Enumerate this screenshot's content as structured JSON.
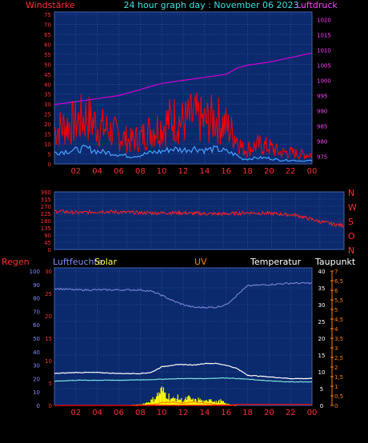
{
  "header": {
    "left": "Windstärke",
    "center": "24 hour graph day : November 06 2023",
    "right": "Luftdruck"
  },
  "colors": {
    "panel_bg": "#0b2a6e",
    "grid": "#3e5fb0",
    "wind_gust": "#ff0000",
    "wind_avg": "#2a6fdc",
    "wind_avg2": "#4aa0ff",
    "pressure": "#d000d0",
    "direction": "#ff2020",
    "humidity": "#6f7fd0",
    "temperature": "#ffffff",
    "dewpoint": "#7fe0e0",
    "solar": "#ffff00",
    "uv": "#ff8000",
    "rain": "#ff0000",
    "left_axis_text": "#ff3030",
    "right_pressure_text": "#ff40ff",
    "x_axis_text": "#ff3030"
  },
  "x_ticks": [
    "02",
    "04",
    "06",
    "08",
    "10",
    "12",
    "14",
    "16",
    "18",
    "20",
    "22",
    "00"
  ],
  "panel_wind": {
    "left_ticks": [
      "75",
      "70",
      "65",
      "60",
      "55",
      "50",
      "45",
      "40",
      "35",
      "30",
      "25",
      "20",
      "15",
      "10",
      "5",
      "0"
    ],
    "right_ticks": [
      "1020",
      "1015",
      "1010",
      "1005",
      "1000",
      "995",
      "990",
      "985",
      "980",
      "975"
    ]
  },
  "panel_dir": {
    "left_ticks": [
      "360",
      "315",
      "270",
      "225",
      "180",
      "135",
      "90",
      "45",
      "0"
    ],
    "right_labels": [
      "N",
      "W",
      "S",
      "O",
      "N"
    ]
  },
  "panel_env": {
    "headers": {
      "regen": "Regen",
      "luftfeuchte": "Luftfeuchte",
      "solar": "Solar",
      "uv": "UV",
      "temperatur": "Temperatur",
      "taupunkt": "Taupunkt"
    },
    "hum_ticks": [
      "100",
      "90",
      "80",
      "70",
      "60",
      "50",
      "40",
      "30",
      "20",
      "10",
      "0"
    ],
    "rain_ticks": [
      "30",
      "25",
      "20",
      "15",
      "10",
      "5",
      "0"
    ],
    "temp_ticks": [
      "40",
      "35",
      "30",
      "25",
      "20",
      "15",
      "10",
      "5",
      "0"
    ],
    "uv_ticks": [
      "7",
      "6,5",
      "6",
      "5,5",
      "5",
      "4,5",
      "4",
      "3,5",
      "3",
      "2,5",
      "2",
      "1,5",
      "1",
      "0,5",
      "0"
    ]
  },
  "chart_data": [
    {
      "type": "line",
      "title": "24 hour graph day : November 06 2023",
      "ylabel": "Windstärke",
      "y2label": "Luftdruck",
      "x_range_hours": [
        0,
        24
      ],
      "ylim": [
        0,
        75
      ],
      "y2lim": [
        972.5,
        1022.5
      ],
      "series": [
        {
          "name": "Windstärke",
          "axis": "left",
          "x": [
            0,
            1,
            2,
            3,
            4,
            5,
            6,
            7,
            8,
            9,
            10,
            11,
            12,
            13,
            14,
            15,
            16,
            17,
            17.5,
            18,
            19,
            20,
            21,
            22,
            23,
            24
          ],
          "values": [
            18,
            20,
            22,
            25,
            20,
            18,
            15,
            12,
            14,
            18,
            20,
            24,
            22,
            25,
            22,
            24,
            20,
            14,
            8,
            8,
            10,
            9,
            6,
            6,
            5,
            5
          ]
        },
        {
          "name": "Luftdruck",
          "axis": "right",
          "x": [
            0,
            2,
            4,
            6,
            8,
            10,
            12,
            14,
            16,
            17,
            18,
            20,
            22,
            24
          ],
          "values": [
            992,
            993,
            994,
            995,
            997,
            999,
            1000,
            1001,
            1002,
            1004,
            1005,
            1006,
            1007.5,
            1009
          ]
        }
      ]
    },
    {
      "type": "line",
      "x_range_hours": [
        0,
        24
      ],
      "ylim": [
        0,
        360
      ],
      "series": [
        {
          "name": "Windrichtung",
          "x": [
            0,
            2,
            4,
            6,
            8,
            10,
            12,
            14,
            16,
            18,
            20,
            21,
            22,
            23,
            24
          ],
          "values": [
            240,
            230,
            238,
            232,
            228,
            230,
            225,
            222,
            230,
            225,
            215,
            195,
            175,
            160,
            150
          ]
        }
      ]
    },
    {
      "type": "line",
      "x_range_hours": [
        0,
        24
      ],
      "y_hum_lim": [
        0,
        100
      ],
      "y_temp_lim": [
        0,
        40
      ],
      "series": [
        {
          "name": "Luftfeuchte",
          "axis": "hum",
          "x": [
            0,
            2,
            4,
            6,
            8,
            9,
            10,
            11,
            12,
            13,
            14,
            15,
            16,
            17,
            18,
            20,
            22,
            24
          ],
          "values": [
            87,
            86,
            86,
            86,
            86,
            85,
            82,
            78,
            75,
            73,
            73,
            73,
            75,
            82,
            89,
            90,
            91,
            91
          ]
        },
        {
          "name": "Temperatur",
          "axis": "temp",
          "x": [
            0,
            2,
            4,
            6,
            8,
            9,
            10,
            11,
            12,
            13,
            14,
            15,
            16,
            17,
            18,
            20,
            22,
            24
          ],
          "values": [
            9.5,
            9.8,
            9.8,
            9.5,
            9.5,
            9.8,
            11.5,
            12.0,
            12.2,
            12.0,
            12.5,
            12.5,
            12.0,
            11.0,
            9.0,
            8.5,
            8.0,
            8.0
          ]
        },
        {
          "name": "Taupunkt",
          "axis": "temp",
          "x": [
            0,
            2,
            4,
            6,
            8,
            10,
            12,
            14,
            16,
            18,
            20,
            22,
            24
          ],
          "values": [
            7.2,
            7.5,
            7.5,
            7.5,
            7.6,
            7.8,
            8.0,
            8.0,
            8.2,
            7.8,
            7.3,
            7.0,
            7.0
          ]
        },
        {
          "name": "Solar",
          "axis": "temp",
          "x": [
            7,
            8,
            8.5,
            9,
            9.5,
            10,
            10.5,
            11,
            11.5,
            12,
            12.5,
            13,
            13.5,
            14,
            14.5,
            15,
            15.5,
            16,
            16.5,
            17
          ],
          "values": [
            0,
            0.3,
            0.8,
            1.5,
            3.0,
            5.0,
            3.5,
            2.0,
            2.5,
            1.5,
            2.5,
            1.5,
            2.0,
            1.0,
            2.5,
            1.0,
            1.5,
            0.5,
            0.3,
            0
          ]
        },
        {
          "name": "UV",
          "axis": "temp",
          "x": [
            7,
            9,
            10,
            11,
            12,
            13,
            14,
            15,
            17
          ],
          "values": [
            0,
            0.2,
            0.8,
            1.0,
            0.6,
            1.0,
            0.8,
            0.3,
            0
          ]
        },
        {
          "name": "Regen",
          "axis": "temp",
          "x": [
            0,
            16.5,
            17,
            24
          ],
          "values": [
            0,
            0,
            0.3,
            0.3
          ]
        }
      ]
    }
  ]
}
